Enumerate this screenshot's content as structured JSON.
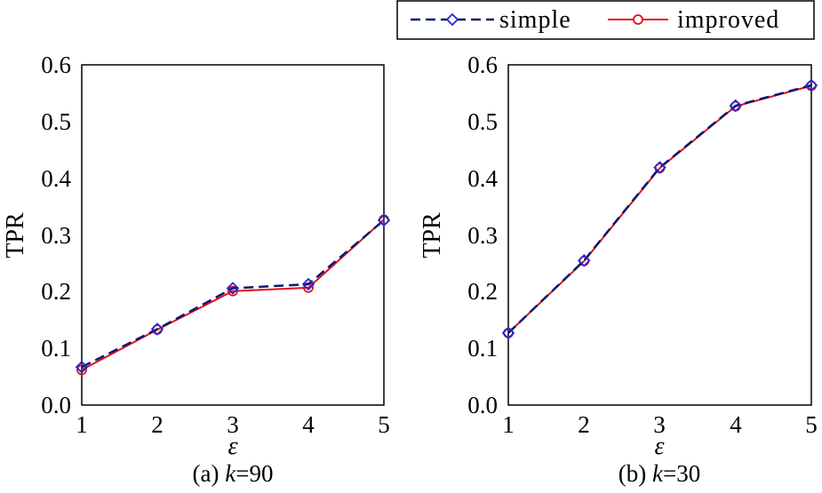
{
  "legend": {
    "items": [
      {
        "label": "simple",
        "color": "#0a1a6e",
        "marker_color": "#1f2cd6",
        "marker": "diamond",
        "dash": true
      },
      {
        "label": "improved",
        "color": "#e0101a",
        "marker_color": "#e0101a",
        "marker": "circle",
        "dash": false
      }
    ]
  },
  "chart_data": [
    {
      "type": "line",
      "caption": {
        "prefix": "(a) ",
        "var": "k",
        "rest": "=90"
      },
      "xlabel": "ε",
      "ylabel": "TPR",
      "x": [
        1,
        2,
        3,
        4,
        5
      ],
      "xlim": [
        1,
        5
      ],
      "ylim": [
        0.0,
        0.6
      ],
      "xticks": [
        "1",
        "2",
        "3",
        "4",
        "5"
      ],
      "yticks": [
        "0.0",
        "0.1",
        "0.2",
        "0.3",
        "0.4",
        "0.5",
        "0.6"
      ],
      "grid": false,
      "series": [
        {
          "name": "simple",
          "values": [
            0.067,
            0.134,
            0.206,
            0.213,
            0.326
          ]
        },
        {
          "name": "improved",
          "values": [
            0.062,
            0.133,
            0.201,
            0.207,
            0.327
          ]
        }
      ]
    },
    {
      "type": "line",
      "caption": {
        "prefix": "(b) ",
        "var": "k",
        "rest": "=30"
      },
      "xlabel": "ε",
      "ylabel": "TPR",
      "x": [
        1,
        2,
        3,
        4,
        5
      ],
      "xlim": [
        1,
        5
      ],
      "ylim": [
        0.0,
        0.6
      ],
      "xticks": [
        "1",
        "2",
        "3",
        "4",
        "5"
      ],
      "yticks": [
        "0.0",
        "0.1",
        "0.2",
        "0.3",
        "0.4",
        "0.5",
        "0.6"
      ],
      "grid": false,
      "series": [
        {
          "name": "simple",
          "values": [
            0.127,
            0.255,
            0.419,
            0.528,
            0.564
          ]
        },
        {
          "name": "improved",
          "values": [
            0.127,
            0.254,
            0.418,
            0.527,
            0.563
          ]
        }
      ]
    }
  ]
}
